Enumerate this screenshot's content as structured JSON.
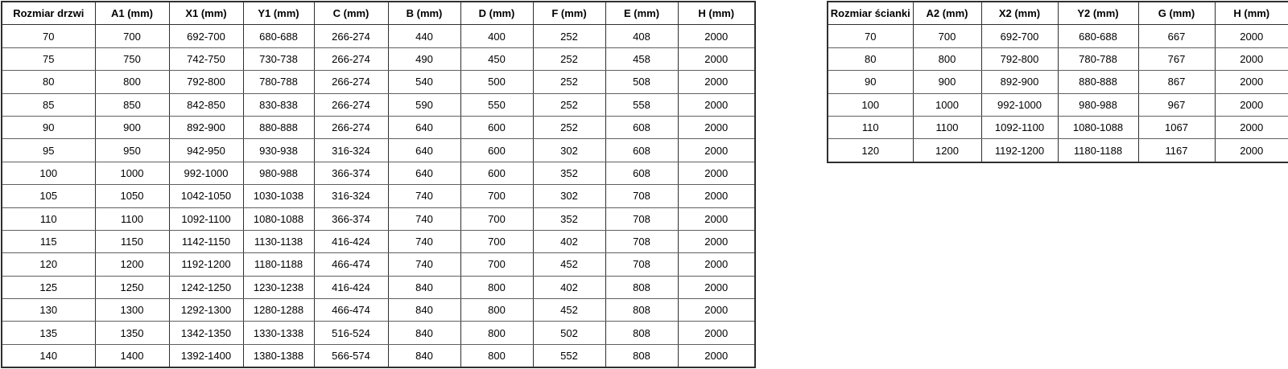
{
  "colors": {
    "background": "#ffffff",
    "text": "#000000",
    "border_outer": "#2f2f2f",
    "border_inner_horizontal": "#5f5f5f"
  },
  "tables": [
    {
      "id": "door",
      "title": "door-dimensions-table",
      "headers": [
        "Rozmiar drzwi",
        "A1 (mm)",
        "X1 (mm)",
        "Y1 (mm)",
        "C (mm)",
        "B (mm)",
        "D (mm)",
        "F (mm)",
        "E (mm)",
        "H (mm)"
      ],
      "rows": [
        [
          "70",
          "700",
          "692-700",
          "680-688",
          "266-274",
          "440",
          "400",
          "252",
          "408",
          "2000"
        ],
        [
          "75",
          "750",
          "742-750",
          "730-738",
          "266-274",
          "490",
          "450",
          "252",
          "458",
          "2000"
        ],
        [
          "80",
          "800",
          "792-800",
          "780-788",
          "266-274",
          "540",
          "500",
          "252",
          "508",
          "2000"
        ],
        [
          "85",
          "850",
          "842-850",
          "830-838",
          "266-274",
          "590",
          "550",
          "252",
          "558",
          "2000"
        ],
        [
          "90",
          "900",
          "892-900",
          "880-888",
          "266-274",
          "640",
          "600",
          "252",
          "608",
          "2000"
        ],
        [
          "95",
          "950",
          "942-950",
          "930-938",
          "316-324",
          "640",
          "600",
          "302",
          "608",
          "2000"
        ],
        [
          "100",
          "1000",
          "992-1000",
          "980-988",
          "366-374",
          "640",
          "600",
          "352",
          "608",
          "2000"
        ],
        [
          "105",
          "1050",
          "1042-1050",
          "1030-1038",
          "316-324",
          "740",
          "700",
          "302",
          "708",
          "2000"
        ],
        [
          "110",
          "1100",
          "1092-1100",
          "1080-1088",
          "366-374",
          "740",
          "700",
          "352",
          "708",
          "2000"
        ],
        [
          "115",
          "1150",
          "1142-1150",
          "1130-1138",
          "416-424",
          "740",
          "700",
          "402",
          "708",
          "2000"
        ],
        [
          "120",
          "1200",
          "1192-1200",
          "1180-1188",
          "466-474",
          "740",
          "700",
          "452",
          "708",
          "2000"
        ],
        [
          "125",
          "1250",
          "1242-1250",
          "1230-1238",
          "416-424",
          "840",
          "800",
          "402",
          "808",
          "2000"
        ],
        [
          "130",
          "1300",
          "1292-1300",
          "1280-1288",
          "466-474",
          "840",
          "800",
          "452",
          "808",
          "2000"
        ],
        [
          "135",
          "1350",
          "1342-1350",
          "1330-1338",
          "516-524",
          "840",
          "800",
          "502",
          "808",
          "2000"
        ],
        [
          "140",
          "1400",
          "1392-1400",
          "1380-1388",
          "566-574",
          "840",
          "800",
          "552",
          "808",
          "2000"
        ]
      ]
    },
    {
      "id": "wall",
      "title": "side-panel-dimensions-table",
      "headers": [
        "Rozmiar ścianki",
        "A2 (mm)",
        "X2 (mm)",
        "Y2 (mm)",
        "G (mm)",
        "H (mm)"
      ],
      "rows": [
        [
          "70",
          "700",
          "692-700",
          "680-688",
          "667",
          "2000"
        ],
        [
          "80",
          "800",
          "792-800",
          "780-788",
          "767",
          "2000"
        ],
        [
          "90",
          "900",
          "892-900",
          "880-888",
          "867",
          "2000"
        ],
        [
          "100",
          "1000",
          "992-1000",
          "980-988",
          "967",
          "2000"
        ],
        [
          "110",
          "1100",
          "1092-1100",
          "1080-1088",
          "1067",
          "2000"
        ],
        [
          "120",
          "1200",
          "1192-1200",
          "1180-1188",
          "1167",
          "2000"
        ]
      ]
    }
  ]
}
